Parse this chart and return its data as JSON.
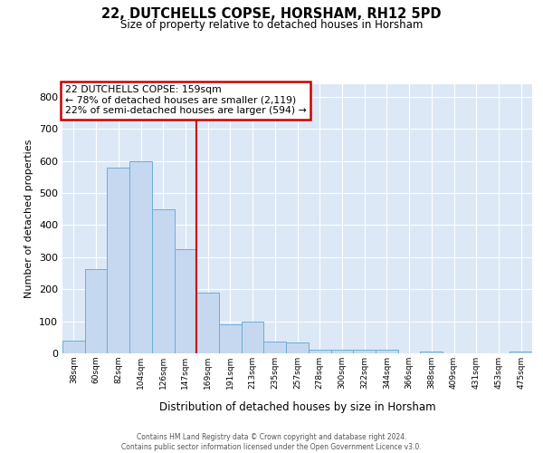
{
  "title": "22, DUTCHELLS COPSE, HORSHAM, RH12 5PD",
  "subtitle": "Size of property relative to detached houses in Horsham",
  "xlabel": "Distribution of detached houses by size in Horsham",
  "ylabel": "Number of detached properties",
  "footer_line1": "Contains HM Land Registry data © Crown copyright and database right 2024.",
  "footer_line2": "Contains public sector information licensed under the Open Government Licence v3.0.",
  "property_label": "22 DUTCHELLS COPSE: 159sqm",
  "annotation_line1": "← 78% of detached houses are smaller (2,119)",
  "annotation_line2": "22% of semi-detached houses are larger (594) →",
  "bar_color": "#c5d8f0",
  "bar_edge_color": "#6baed6",
  "vline_color": "#cc0000",
  "annotation_box_edgecolor": "#cc0000",
  "grid_color": "#dce8f5",
  "categories": [
    "38sqm",
    "60sqm",
    "82sqm",
    "104sqm",
    "126sqm",
    "147sqm",
    "169sqm",
    "191sqm",
    "213sqm",
    "235sqm",
    "257sqm",
    "278sqm",
    "300sqm",
    "322sqm",
    "344sqm",
    "366sqm",
    "388sqm",
    "409sqm",
    "431sqm",
    "453sqm",
    "475sqm"
  ],
  "values": [
    40,
    262,
    580,
    600,
    450,
    325,
    190,
    90,
    100,
    37,
    35,
    12,
    10,
    10,
    10,
    0,
    5,
    0,
    0,
    0,
    5
  ],
  "vline_x_index": 6,
  "ylim_max": 840,
  "yticks": [
    0,
    100,
    200,
    300,
    400,
    500,
    600,
    700,
    800
  ]
}
